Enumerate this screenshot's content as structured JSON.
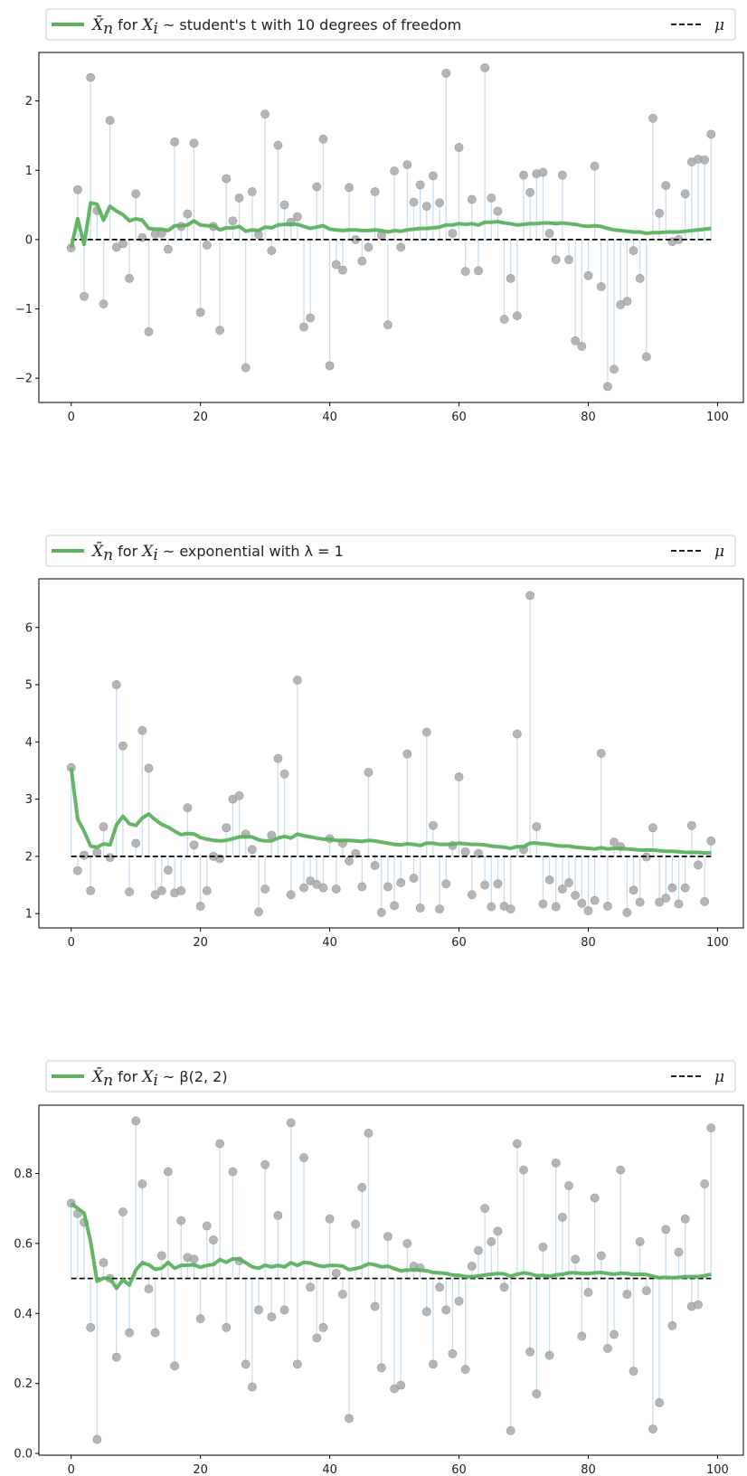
{
  "colors": {
    "mean_line": "#5cb15e",
    "samples": "#a9a9a9",
    "stems": "#c9dff0",
    "mu_line": "#000000"
  },
  "chart_data": [
    {
      "type": "line",
      "legend": {
        "series": "X̄ₙ for Xᵢ ~ student's t with 10 degrees of freedom",
        "series_prefix": "X̄",
        "series_sub": "n",
        "series_mid": " for ",
        "series_var": "X",
        "series_var_sub": "i",
        "series_text": " ~ student's t with 10 degrees of freedom",
        "mu": "μ",
        "placement": "top"
      },
      "xlim": [
        -5,
        104
      ],
      "ylim": [
        -2.35,
        2.7
      ],
      "xticks": [
        0,
        20,
        40,
        60,
        80,
        100
      ],
      "yticks": [
        -2,
        -1,
        0,
        1,
        2
      ],
      "xtick_labels": [
        "0",
        "20",
        "40",
        "60",
        "80",
        "100"
      ],
      "ytick_labels": [
        "−2",
        "−1",
        "0",
        "1",
        "2"
      ],
      "mu": 0,
      "samples": [
        -0.12,
        0.72,
        -0.82,
        2.34,
        0.42,
        -0.93,
        1.72,
        -0.11,
        -0.06,
        -0.56,
        0.66,
        0.03,
        -1.33,
        0.08,
        0.09,
        -0.14,
        1.41,
        0.19,
        0.37,
        1.39,
        -1.05,
        -0.08,
        0.19,
        -1.31,
        0.88,
        0.27,
        0.6,
        -1.85,
        0.69,
        0.07,
        1.81,
        -0.16,
        1.36,
        0.5,
        0.25,
        0.33,
        -1.26,
        -1.13,
        0.76,
        1.45,
        -1.82,
        -0.36,
        -0.44,
        0.75,
        0.0,
        -0.31,
        -0.11,
        0.69,
        0.06,
        -1.23,
        0.99,
        -0.11,
        1.08,
        0.54,
        0.79,
        0.48,
        0.92,
        0.53,
        2.4,
        0.09,
        1.33,
        -0.46,
        0.58,
        -0.45,
        2.48,
        0.6,
        0.41,
        -1.15,
        -0.56,
        -1.1,
        0.93,
        0.68,
        0.95,
        0.97,
        0.09,
        -0.29,
        0.93,
        -0.29,
        -1.46,
        -1.54,
        -0.52,
        1.06,
        -0.68,
        -2.12,
        -1.87,
        -0.94,
        -0.89,
        -0.16,
        -0.56,
        -1.69,
        1.75,
        0.38,
        0.78,
        -0.03,
        0.0,
        0.66,
        1.12,
        1.16,
        1.15,
        1.52
      ],
      "running_mean": [
        -0.12,
        0.3,
        -0.07,
        0.53,
        0.51,
        0.28,
        0.48,
        0.41,
        0.36,
        0.27,
        0.3,
        0.28,
        0.16,
        0.15,
        0.15,
        0.13,
        0.2,
        0.2,
        0.21,
        0.27,
        0.21,
        0.2,
        0.2,
        0.14,
        0.17,
        0.17,
        0.19,
        0.12,
        0.14,
        0.13,
        0.18,
        0.17,
        0.21,
        0.22,
        0.22,
        0.22,
        0.19,
        0.16,
        0.18,
        0.2,
        0.15,
        0.14,
        0.13,
        0.14,
        0.14,
        0.13,
        0.13,
        0.14,
        0.13,
        0.11,
        0.13,
        0.12,
        0.14,
        0.15,
        0.16,
        0.16,
        0.17,
        0.18,
        0.21,
        0.21,
        0.23,
        0.22,
        0.23,
        0.21,
        0.25,
        0.25,
        0.26,
        0.24,
        0.23,
        0.21,
        0.22,
        0.23,
        0.23,
        0.24,
        0.24,
        0.23,
        0.24,
        0.23,
        0.22,
        0.2,
        0.19,
        0.2,
        0.19,
        0.16,
        0.14,
        0.13,
        0.12,
        0.11,
        0.11,
        0.09,
        0.1,
        0.1,
        0.11,
        0.11,
        0.11,
        0.12,
        0.13,
        0.14,
        0.15,
        0.16
      ]
    },
    {
      "type": "line",
      "legend": {
        "series": "X̄ₙ for Xᵢ ~ exponential with λ = 1",
        "series_prefix": "X̄",
        "series_sub": "n",
        "series_mid": " for ",
        "series_var": "X",
        "series_var_sub": "i",
        "series_text": " ~ exponential with λ = 1",
        "mu": "μ",
        "placement": "top"
      },
      "xlim": [
        -5,
        104
      ],
      "ylim": [
        0.75,
        6.85
      ],
      "xticks": [
        0,
        20,
        40,
        60,
        80,
        100
      ],
      "yticks": [
        1,
        2,
        3,
        4,
        5,
        6
      ],
      "xtick_labels": [
        "0",
        "20",
        "40",
        "60",
        "80",
        "100"
      ],
      "ytick_labels": [
        "1",
        "2",
        "3",
        "4",
        "5",
        "6"
      ],
      "mu": 2,
      "samples": [
        3.55,
        1.75,
        2.02,
        1.4,
        2.07,
        2.52,
        1.98,
        5.0,
        3.93,
        1.38,
        2.23,
        4.2,
        3.54,
        1.33,
        1.4,
        1.76,
        1.36,
        1.4,
        2.85,
        2.2,
        1.13,
        1.4,
        2.0,
        1.96,
        2.5,
        3.0,
        3.06,
        2.39,
        2.12,
        1.03,
        1.43,
        2.37,
        3.71,
        3.44,
        1.33,
        5.08,
        1.45,
        1.57,
        1.51,
        1.45,
        2.31,
        1.43,
        2.23,
        1.92,
        2.05,
        1.47,
        3.47,
        1.84,
        1.02,
        1.47,
        1.14,
        1.54,
        3.79,
        1.62,
        1.1,
        4.17,
        2.54,
        1.08,
        1.52,
        2.19,
        3.39,
        2.08,
        1.33,
        2.05,
        1.5,
        1.12,
        1.52,
        1.13,
        1.08,
        4.14,
        2.12,
        6.56,
        2.52,
        1.17,
        1.59,
        1.12,
        1.43,
        1.54,
        1.32,
        1.18,
        1.05,
        1.23,
        3.8,
        1.13,
        2.25,
        2.17,
        1.02,
        1.41,
        1.2,
        1.99,
        2.5,
        1.2,
        1.27,
        1.45,
        1.17,
        1.45,
        2.54,
        1.85,
        1.21,
        2.27
      ],
      "running_mean": [
        3.55,
        2.65,
        2.44,
        2.18,
        2.16,
        2.22,
        2.2,
        2.55,
        2.7,
        2.57,
        2.54,
        2.67,
        2.74,
        2.64,
        2.56,
        2.51,
        2.44,
        2.38,
        2.4,
        2.39,
        2.33,
        2.3,
        2.28,
        2.27,
        2.28,
        2.31,
        2.34,
        2.34,
        2.34,
        2.29,
        2.27,
        2.27,
        2.32,
        2.35,
        2.32,
        2.39,
        2.36,
        2.34,
        2.32,
        2.3,
        2.3,
        2.28,
        2.28,
        2.28,
        2.27,
        2.26,
        2.28,
        2.27,
        2.25,
        2.23,
        2.21,
        2.2,
        2.22,
        2.21,
        2.19,
        2.23,
        2.23,
        2.21,
        2.21,
        2.21,
        2.23,
        2.22,
        2.21,
        2.21,
        2.2,
        2.18,
        2.17,
        2.16,
        2.14,
        2.17,
        2.17,
        2.23,
        2.23,
        2.22,
        2.21,
        2.19,
        2.18,
        2.18,
        2.16,
        2.15,
        2.14,
        2.13,
        2.15,
        2.13,
        2.14,
        2.14,
        2.13,
        2.12,
        2.11,
        2.11,
        2.11,
        2.1,
        2.09,
        2.09,
        2.08,
        2.07,
        2.07,
        2.07,
        2.06,
        2.06
      ]
    },
    {
      "type": "line",
      "legend": {
        "series": "X̄ₙ for Xᵢ ~ β(2, 2)",
        "series_prefix": "X̄",
        "series_sub": "n",
        "series_mid": " for ",
        "series_var": "X",
        "series_var_sub": "i",
        "series_text": " ~ β(2, 2)",
        "mu": "μ",
        "placement": "top"
      },
      "xlim": [
        -5,
        104
      ],
      "ylim": [
        -0.005,
        0.995
      ],
      "xticks": [
        0,
        20,
        40,
        60,
        80,
        100
      ],
      "yticks": [
        0.0,
        0.2,
        0.4,
        0.6,
        0.8
      ],
      "xtick_labels": [
        "0",
        "20",
        "40",
        "60",
        "80",
        "100"
      ],
      "ytick_labels": [
        "0.0",
        "0.2",
        "0.4",
        "0.6",
        "0.8"
      ],
      "mu": 0.5,
      "samples": [
        0.715,
        0.685,
        0.66,
        0.36,
        0.04,
        0.545,
        0.5,
        0.275,
        0.69,
        0.345,
        0.95,
        0.77,
        0.47,
        0.345,
        0.565,
        0.805,
        0.25,
        0.665,
        0.56,
        0.555,
        0.385,
        0.65,
        0.61,
        0.885,
        0.36,
        0.805,
        0.55,
        0.255,
        0.19,
        0.41,
        0.825,
        0.39,
        0.68,
        0.41,
        0.945,
        0.255,
        0.845,
        0.475,
        0.33,
        0.36,
        0.67,
        0.515,
        0.455,
        0.1,
        0.655,
        0.76,
        0.915,
        0.42,
        0.245,
        0.62,
        0.185,
        0.195,
        0.6,
        0.535,
        0.53,
        0.405,
        0.255,
        0.475,
        0.41,
        0.285,
        0.435,
        0.24,
        0.535,
        0.58,
        0.7,
        0.605,
        0.635,
        0.475,
        0.065,
        0.885,
        0.81,
        0.29,
        0.17,
        0.59,
        0.28,
        0.83,
        0.675,
        0.765,
        0.555,
        0.335,
        0.46,
        0.73,
        0.565,
        0.3,
        0.34,
        0.81,
        0.455,
        0.235,
        0.605,
        0.465,
        0.07,
        0.145,
        0.64,
        0.365,
        0.575,
        0.67,
        0.42,
        0.425,
        0.77,
        0.93
      ],
      "running_mean": [
        0.715,
        0.7,
        0.687,
        0.605,
        0.492,
        0.501,
        0.5,
        0.472,
        0.496,
        0.481,
        0.524,
        0.545,
        0.539,
        0.526,
        0.529,
        0.546,
        0.529,
        0.537,
        0.538,
        0.539,
        0.532,
        0.537,
        0.54,
        0.554,
        0.546,
        0.556,
        0.555,
        0.545,
        0.533,
        0.529,
        0.538,
        0.533,
        0.537,
        0.533,
        0.545,
        0.537,
        0.546,
        0.544,
        0.538,
        0.534,
        0.537,
        0.537,
        0.535,
        0.525,
        0.528,
        0.533,
        0.542,
        0.539,
        0.533,
        0.535,
        0.528,
        0.522,
        0.524,
        0.524,
        0.524,
        0.522,
        0.517,
        0.516,
        0.514,
        0.51,
        0.509,
        0.505,
        0.505,
        0.507,
        0.51,
        0.512,
        0.514,
        0.513,
        0.506,
        0.512,
        0.516,
        0.513,
        0.508,
        0.509,
        0.506,
        0.51,
        0.512,
        0.516,
        0.516,
        0.514,
        0.514,
        0.516,
        0.517,
        0.514,
        0.512,
        0.515,
        0.514,
        0.511,
        0.512,
        0.511,
        0.506,
        0.502,
        0.503,
        0.502,
        0.503,
        0.505,
        0.505,
        0.505,
        0.508,
        0.512
      ]
    }
  ]
}
